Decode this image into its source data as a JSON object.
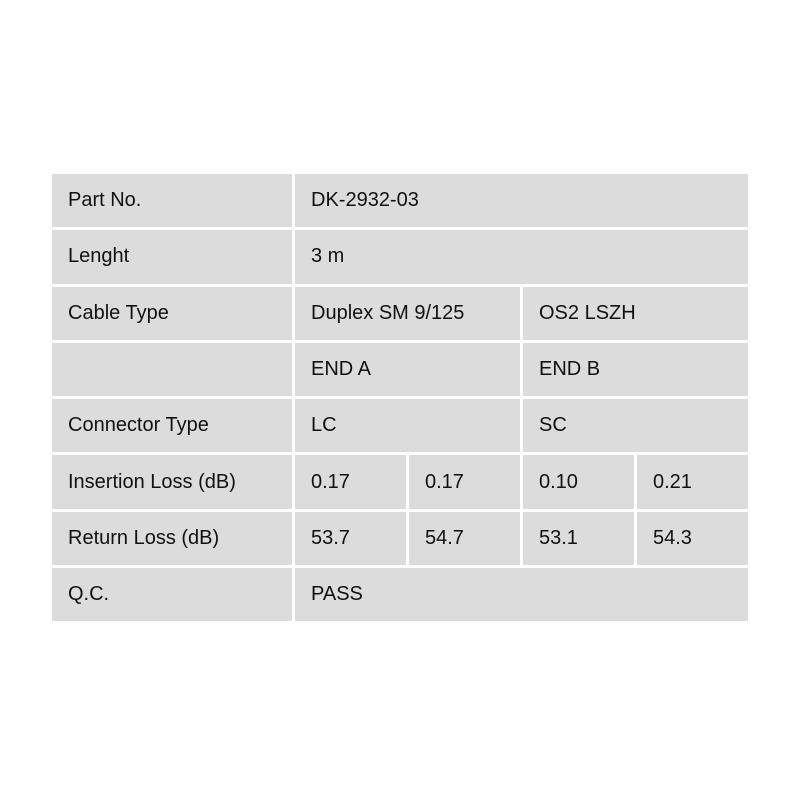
{
  "rows": {
    "part_no": {
      "label": "Part No.",
      "value": "DK-2932-03"
    },
    "length": {
      "label": "Lenght",
      "value": "3 m"
    },
    "cable_type": {
      "label": "Cable Type",
      "values": [
        "Duplex SM 9/125",
        "OS2 LSZH"
      ]
    },
    "ends": {
      "label": "",
      "values": [
        "END A",
        "END B"
      ]
    },
    "connector_type": {
      "label": "Connector Type",
      "values": [
        "LC",
        "SC"
      ]
    },
    "insertion_loss": {
      "label": "Insertion Loss (dB)",
      "values": [
        "0.17",
        "0.17",
        "0.10",
        "0.21"
      ]
    },
    "return_loss": {
      "label": "Return Loss (dB)",
      "values": [
        "53.7",
        "54.7",
        "53.1",
        "54.3"
      ]
    },
    "qc": {
      "label": "Q.C.",
      "value": "PASS"
    }
  }
}
